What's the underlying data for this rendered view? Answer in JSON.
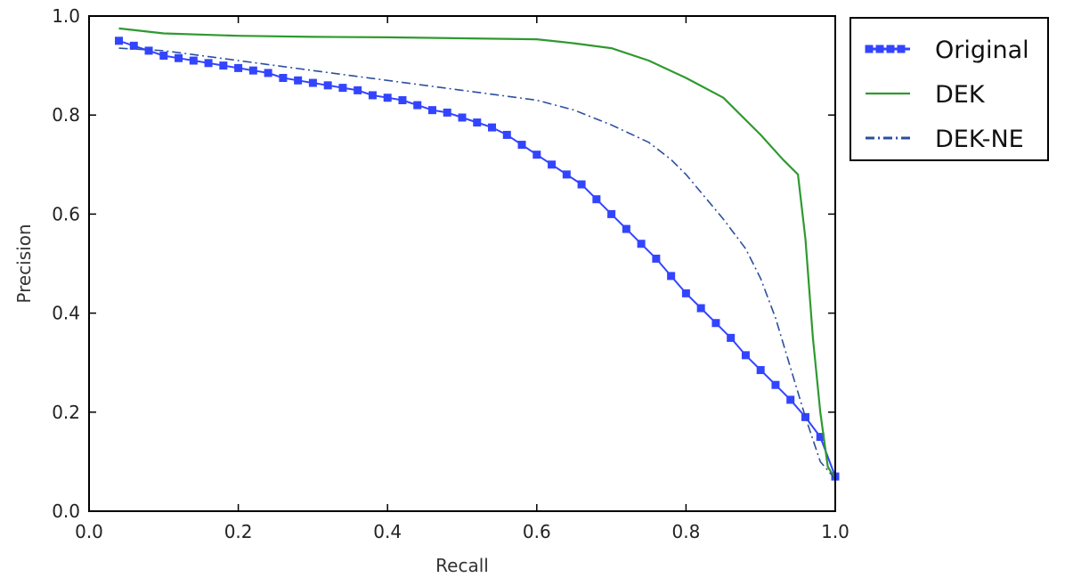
{
  "chart_data": {
    "type": "line",
    "title": "",
    "xlabel": "Recall",
    "ylabel": "Precision",
    "xlim": [
      0.0,
      1.0
    ],
    "ylim": [
      0.0,
      1.0
    ],
    "xticks": [
      "0.0",
      "0.2",
      "0.4",
      "0.6",
      "0.8",
      "1.0"
    ],
    "yticks": [
      "0.0",
      "0.2",
      "0.4",
      "0.6",
      "0.8",
      "1.0"
    ],
    "grid": false,
    "legend_position": "outside-top-right",
    "series": [
      {
        "name": "Original",
        "color": "#3344ff",
        "style": "solid-square-markers",
        "x": [
          0.04,
          0.06,
          0.08,
          0.1,
          0.12,
          0.14,
          0.16,
          0.18,
          0.2,
          0.22,
          0.24,
          0.26,
          0.28,
          0.3,
          0.32,
          0.34,
          0.36,
          0.38,
          0.4,
          0.42,
          0.44,
          0.46,
          0.48,
          0.5,
          0.52,
          0.54,
          0.56,
          0.58,
          0.6,
          0.62,
          0.64,
          0.66,
          0.68,
          0.7,
          0.72,
          0.74,
          0.76,
          0.78,
          0.8,
          0.82,
          0.84,
          0.86,
          0.88,
          0.9,
          0.92,
          0.94,
          0.96,
          0.98,
          1.0
        ],
        "y": [
          0.95,
          0.94,
          0.93,
          0.92,
          0.915,
          0.91,
          0.905,
          0.9,
          0.895,
          0.89,
          0.885,
          0.875,
          0.87,
          0.865,
          0.86,
          0.855,
          0.85,
          0.84,
          0.835,
          0.83,
          0.82,
          0.81,
          0.805,
          0.795,
          0.785,
          0.775,
          0.76,
          0.74,
          0.72,
          0.7,
          0.68,
          0.66,
          0.63,
          0.6,
          0.57,
          0.54,
          0.51,
          0.475,
          0.44,
          0.41,
          0.38,
          0.35,
          0.315,
          0.285,
          0.255,
          0.225,
          0.19,
          0.15,
          0.07
        ]
      },
      {
        "name": "DEK",
        "color": "#2e9a2e",
        "style": "solid",
        "x": [
          0.04,
          0.1,
          0.2,
          0.3,
          0.4,
          0.5,
          0.6,
          0.65,
          0.7,
          0.75,
          0.8,
          0.85,
          0.9,
          0.93,
          0.95,
          0.96,
          0.97,
          0.98,
          0.99,
          1.0
        ],
        "y": [
          0.975,
          0.965,
          0.96,
          0.958,
          0.957,
          0.955,
          0.953,
          0.945,
          0.935,
          0.91,
          0.875,
          0.835,
          0.76,
          0.71,
          0.68,
          0.55,
          0.35,
          0.2,
          0.09,
          0.065
        ]
      },
      {
        "name": "DEK-NE",
        "color": "#2c4f9e",
        "style": "dashdot",
        "x": [
          0.04,
          0.1,
          0.2,
          0.3,
          0.4,
          0.5,
          0.6,
          0.65,
          0.7,
          0.75,
          0.78,
          0.8,
          0.85,
          0.88,
          0.9,
          0.92,
          0.94,
          0.96,
          0.98,
          1.0
        ],
        "y": [
          0.935,
          0.93,
          0.91,
          0.89,
          0.87,
          0.85,
          0.83,
          0.81,
          0.78,
          0.745,
          0.71,
          0.68,
          0.59,
          0.53,
          0.47,
          0.39,
          0.29,
          0.19,
          0.1,
          0.065
        ]
      }
    ]
  }
}
